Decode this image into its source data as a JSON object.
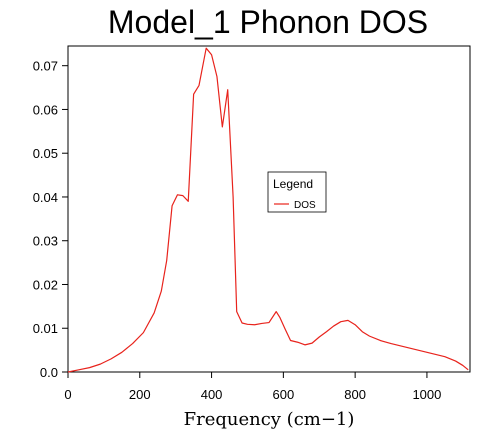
{
  "chart_data": {
    "type": "line",
    "title": "Model_1 Phonon DOS",
    "xlabel": "Frequency (cm−1)",
    "ylabel": "",
    "xlim": [
      0,
      1120
    ],
    "ylim": [
      0,
      0.0745
    ],
    "xticks": [
      0,
      200,
      400,
      600,
      800,
      1000
    ],
    "yticks": [
      0.0,
      0.01,
      0.02,
      0.03,
      0.04,
      0.05,
      0.06,
      0.07
    ],
    "xtick_labels": [
      "0",
      "200",
      "400",
      "600",
      "800",
      "1000"
    ],
    "ytick_labels": [
      "0.0",
      "0.01",
      "0.02",
      "0.03",
      "0.04",
      "0.05",
      "0.06",
      "0.07"
    ],
    "grid": false,
    "legend": {
      "title": "Legend",
      "placement": "right-middle",
      "entries": [
        "DOS"
      ]
    },
    "series": [
      {
        "name": "DOS",
        "color": "#e8231c",
        "x": [
          0,
          30,
          60,
          90,
          120,
          150,
          180,
          210,
          240,
          260,
          275,
          290,
          305,
          320,
          335,
          350,
          365,
          385,
          400,
          415,
          430,
          445,
          460,
          470,
          485,
          500,
          520,
          540,
          560,
          580,
          590,
          605,
          620,
          640,
          660,
          680,
          700,
          720,
          740,
          760,
          780,
          800,
          820,
          840,
          870,
          900,
          950,
          1000,
          1050,
          1080,
          1100,
          1115
        ],
        "y": [
          0.0,
          0.0005,
          0.001,
          0.0018,
          0.003,
          0.0045,
          0.0065,
          0.009,
          0.0135,
          0.0185,
          0.0255,
          0.038,
          0.0405,
          0.0403,
          0.039,
          0.0635,
          0.0655,
          0.074,
          0.0725,
          0.0675,
          0.056,
          0.0645,
          0.04,
          0.0138,
          0.0112,
          0.0109,
          0.0108,
          0.0111,
          0.0113,
          0.0138,
          0.0125,
          0.0098,
          0.0072,
          0.0068,
          0.0062,
          0.0066,
          0.008,
          0.0092,
          0.0105,
          0.0115,
          0.0118,
          0.0108,
          0.0092,
          0.0082,
          0.0072,
          0.0065,
          0.0055,
          0.0045,
          0.0035,
          0.0025,
          0.0015,
          0.0005
        ]
      }
    ]
  }
}
